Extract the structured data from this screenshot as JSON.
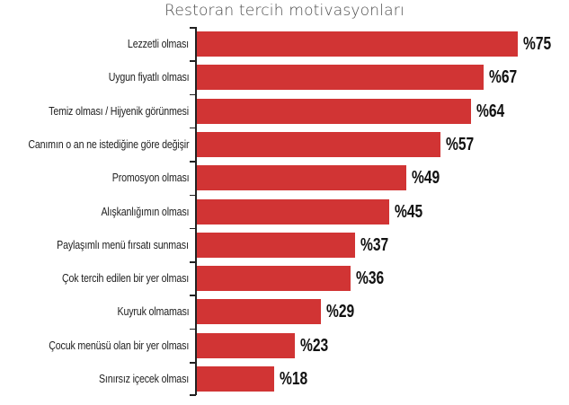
{
  "title": "Restoran tercih motivasyonları",
  "bar_color": "#d13434",
  "rows": [
    {
      "label": "Lezzetli olması",
      "value": 75,
      "display": "%75"
    },
    {
      "label": "Uygun fiyatlı olması",
      "value": 67,
      "display": "%67"
    },
    {
      "label": "Temiz olması / Hijyenik görünmesi",
      "value": 64,
      "display": "%64"
    },
    {
      "label": "Canımın o an ne istediğine göre değişir",
      "value": 57,
      "display": "%57"
    },
    {
      "label": "Promosyon olması",
      "value": 49,
      "display": "%49"
    },
    {
      "label": "Alışkanlığımın olması",
      "value": 45,
      "display": "%45"
    },
    {
      "label": "Paylaşımlı menü fırsatı sunması",
      "value": 37,
      "display": "%37"
    },
    {
      "label": "Çok tercih edilen bir yer olması",
      "value": 36,
      "display": "%36"
    },
    {
      "label": "Kuyruk olmaması",
      "value": 29,
      "display": "%29"
    },
    {
      "label": "Çocuk menüsü olan bir yer olması",
      "value": 23,
      "display": "%23"
    },
    {
      "label": "Sınırsız içecek olması",
      "value": 18,
      "display": "%18"
    }
  ],
  "chart_data": {
    "type": "bar",
    "orientation": "horizontal",
    "title": "Restoran tercih motivasyonları",
    "categories": [
      "Lezzetli olması",
      "Uygun fiyatlı olması",
      "Temiz olması / Hijyenik görünmesi",
      "Canımın o an ne istediğine göre değişir",
      "Promosyon olması",
      "Alışkanlığımın olması",
      "Paylaşımlı menü fırsatı sunması",
      "Çok tercih edilen bir yer olması",
      "Kuyruk olmaması",
      "Çocuk menüsü olan bir yer olması",
      "Sınırsız içecek olması"
    ],
    "values": [
      75,
      67,
      64,
      57,
      49,
      45,
      37,
      36,
      29,
      23,
      18
    ],
    "value_labels": [
      "%75",
      "%67",
      "%64",
      "%57",
      "%49",
      "%45",
      "%37",
      "%36",
      "%29",
      "%23",
      "%18"
    ],
    "xlabel": "",
    "ylabel": "",
    "unit": "%",
    "grid": false,
    "legend": null,
    "color": "#d13434"
  }
}
